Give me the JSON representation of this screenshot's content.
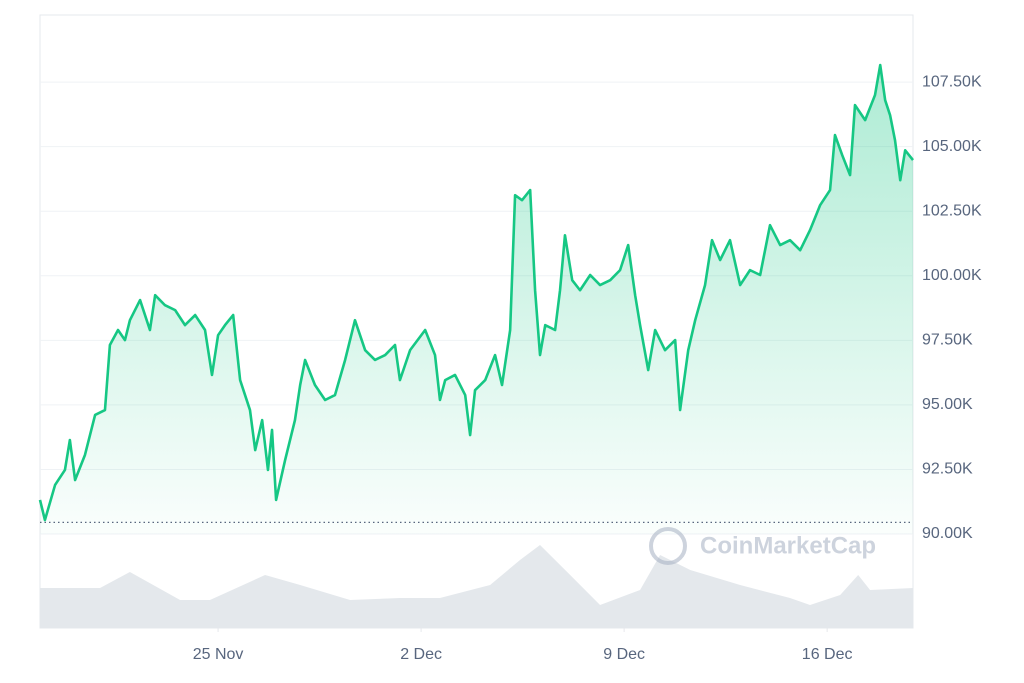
{
  "chart_data": {
    "type": "line",
    "watermark": "CoinMarketCap",
    "x": [
      18.86,
      19.03,
      19.38,
      19.72,
      19.89,
      20.07,
      20.41,
      20.76,
      21.1,
      21.27,
      21.55,
      21.79,
      21.96,
      22.31,
      22.65,
      22.83,
      23.17,
      23.52,
      23.86,
      24.21,
      24.55,
      24.79,
      25.0,
      25.24,
      25.52,
      25.76,
      26.1,
      26.28,
      26.52,
      26.72,
      26.86,
      27.0,
      27.31,
      27.65,
      27.83,
      28.0,
      28.34,
      28.69,
      29.03,
      29.38,
      29.72,
      30.07,
      30.41,
      30.76,
      31.1,
      31.27,
      31.62,
      32.14,
      32.48,
      32.65,
      32.83,
      33.17,
      33.52,
      33.69,
      33.86,
      34.21,
      34.55,
      34.79,
      35.07,
      35.24,
      35.48,
      35.76,
      35.93,
      36.1,
      36.28,
      36.62,
      36.79,
      36.96,
      37.21,
      37.48,
      37.83,
      38.17,
      38.52,
      38.86,
      39.14,
      39.38,
      39.55,
      39.83,
      40.07,
      40.41,
      40.76,
      40.93,
      41.21,
      41.45,
      41.79,
      42.03,
      42.31,
      42.65,
      43.0,
      43.34,
      43.69,
      44.03,
      44.38,
      44.72,
      45.07,
      45.41,
      45.76,
      46.1,
      46.27,
      46.52,
      46.79,
      46.96,
      47.31,
      47.65,
      47.83,
      48.0,
      48.17,
      48.34,
      48.52,
      48.69,
      48.96
    ],
    "series": [
      {
        "color": "#16c784",
        "values": [
          91320,
          90540,
          91900,
          92480,
          93640,
          92090,
          93060,
          94610,
          94800,
          97320,
          97900,
          97510,
          98280,
          99060,
          97900,
          99250,
          98860,
          98670,
          98090,
          98480,
          97900,
          96160,
          97700,
          98090,
          98480,
          95960,
          94800,
          93250,
          94410,
          92480,
          94030,
          91320,
          92860,
          94410,
          95770,
          96740,
          95770,
          95190,
          95380,
          96740,
          98280,
          97120,
          96740,
          96930,
          97320,
          95960,
          97120,
          97900,
          96930,
          95190,
          95960,
          96160,
          95380,
          93830,
          95570,
          95960,
          96930,
          95770,
          97900,
          103120,
          102930,
          103320,
          99440,
          96930,
          98090,
          97900,
          99440,
          101570,
          99830,
          99440,
          100030,
          99640,
          99830,
          100220,
          101190,
          99250,
          98090,
          96350,
          97900,
          97120,
          97510,
          94800,
          97120,
          98280,
          99640,
          101380,
          100610,
          101380,
          99640,
          100220,
          100030,
          101960,
          101190,
          101380,
          100990,
          101770,
          102740,
          103320,
          105450,
          104670,
          103900,
          106610,
          106030,
          107000,
          108160,
          106800,
          106220,
          105250,
          103700,
          104860,
          104480
        ]
      }
    ],
    "reference_line": 90450,
    "volume": {
      "color": "#e4e8ec",
      "x": [
        18.86,
        20.93,
        21.96,
        23.69,
        24.72,
        26.62,
        27.83,
        29.55,
        31.27,
        32.65,
        34.38,
        35.41,
        36.1,
        37.14,
        38.17,
        39.55,
        40.24,
        41.28,
        43.0,
        44.72,
        45.41,
        46.45,
        47.07,
        47.48,
        48.96
      ],
      "values": [
        40,
        40,
        56,
        28,
        28,
        53,
        43,
        28,
        30,
        30,
        43,
        68,
        83,
        53,
        23,
        38,
        73,
        58,
        43,
        30,
        23,
        33,
        53,
        38,
        40
      ]
    },
    "xlim": [
      18.86,
      48.96
    ],
    "xticks": [
      {
        "value": 25,
        "label": "25 Nov"
      },
      {
        "value": 32,
        "label": "2 Dec"
      },
      {
        "value": 39,
        "label": "9 Dec"
      },
      {
        "value": 46,
        "label": "16 Dec"
      }
    ],
    "ylim": [
      90000,
      110100
    ],
    "yticks": [
      {
        "value": 90000,
        "label": "90.00K"
      },
      {
        "value": 92500,
        "label": "92.50K"
      },
      {
        "value": 95000,
        "label": "95.00K"
      },
      {
        "value": 97500,
        "label": "97.50K"
      },
      {
        "value": 100000,
        "label": "100.00K"
      },
      {
        "value": 102500,
        "label": "102.50K"
      },
      {
        "value": 105000,
        "label": "105.00K"
      },
      {
        "value": 107500,
        "label": "107.50K"
      }
    ],
    "grid": true
  }
}
